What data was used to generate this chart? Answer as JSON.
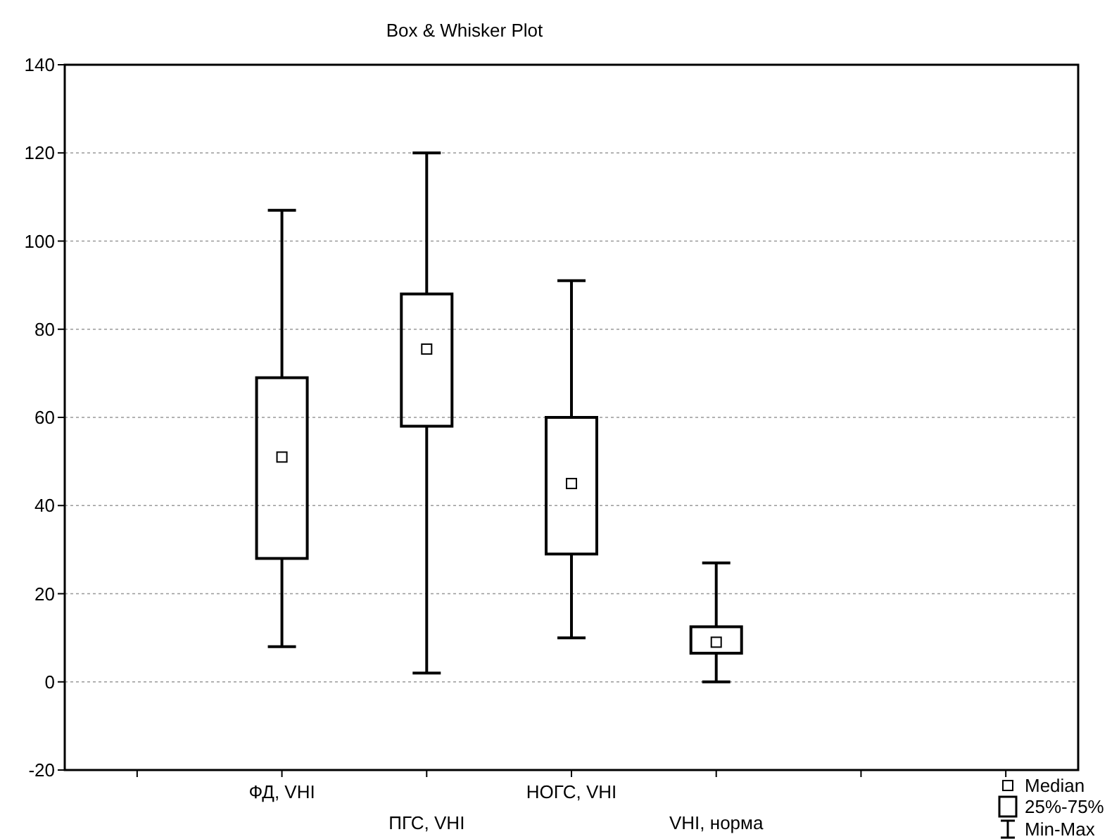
{
  "chart_data": {
    "type": "box",
    "title": "Box & Whisker Plot",
    "categories": [
      null,
      "ФД, VHI",
      "ПГС, VHI",
      "НОГС, VHI",
      "VHI, норма",
      null,
      null
    ],
    "boxes": [
      null,
      {
        "low": 8,
        "q1": 28,
        "median": 51,
        "q3": 69,
        "high": 107
      },
      {
        "low": 2,
        "q1": 58,
        "median": 75.5,
        "q3": 88,
        "high": 120
      },
      {
        "low": 10,
        "q1": 29,
        "median": 45,
        "q3": 60,
        "high": 91
      },
      {
        "low": 0,
        "q1": 6.5,
        "median": 9,
        "q3": 12.5,
        "high": 27
      },
      null,
      null
    ],
    "ylim": [
      -20,
      140
    ],
    "yticks": [
      -20,
      0,
      20,
      40,
      60,
      80,
      100,
      120,
      140
    ],
    "grid": "y",
    "marker": "square",
    "annotations": [
      "Median",
      "25%-75%",
      "Min-Max"
    ]
  }
}
